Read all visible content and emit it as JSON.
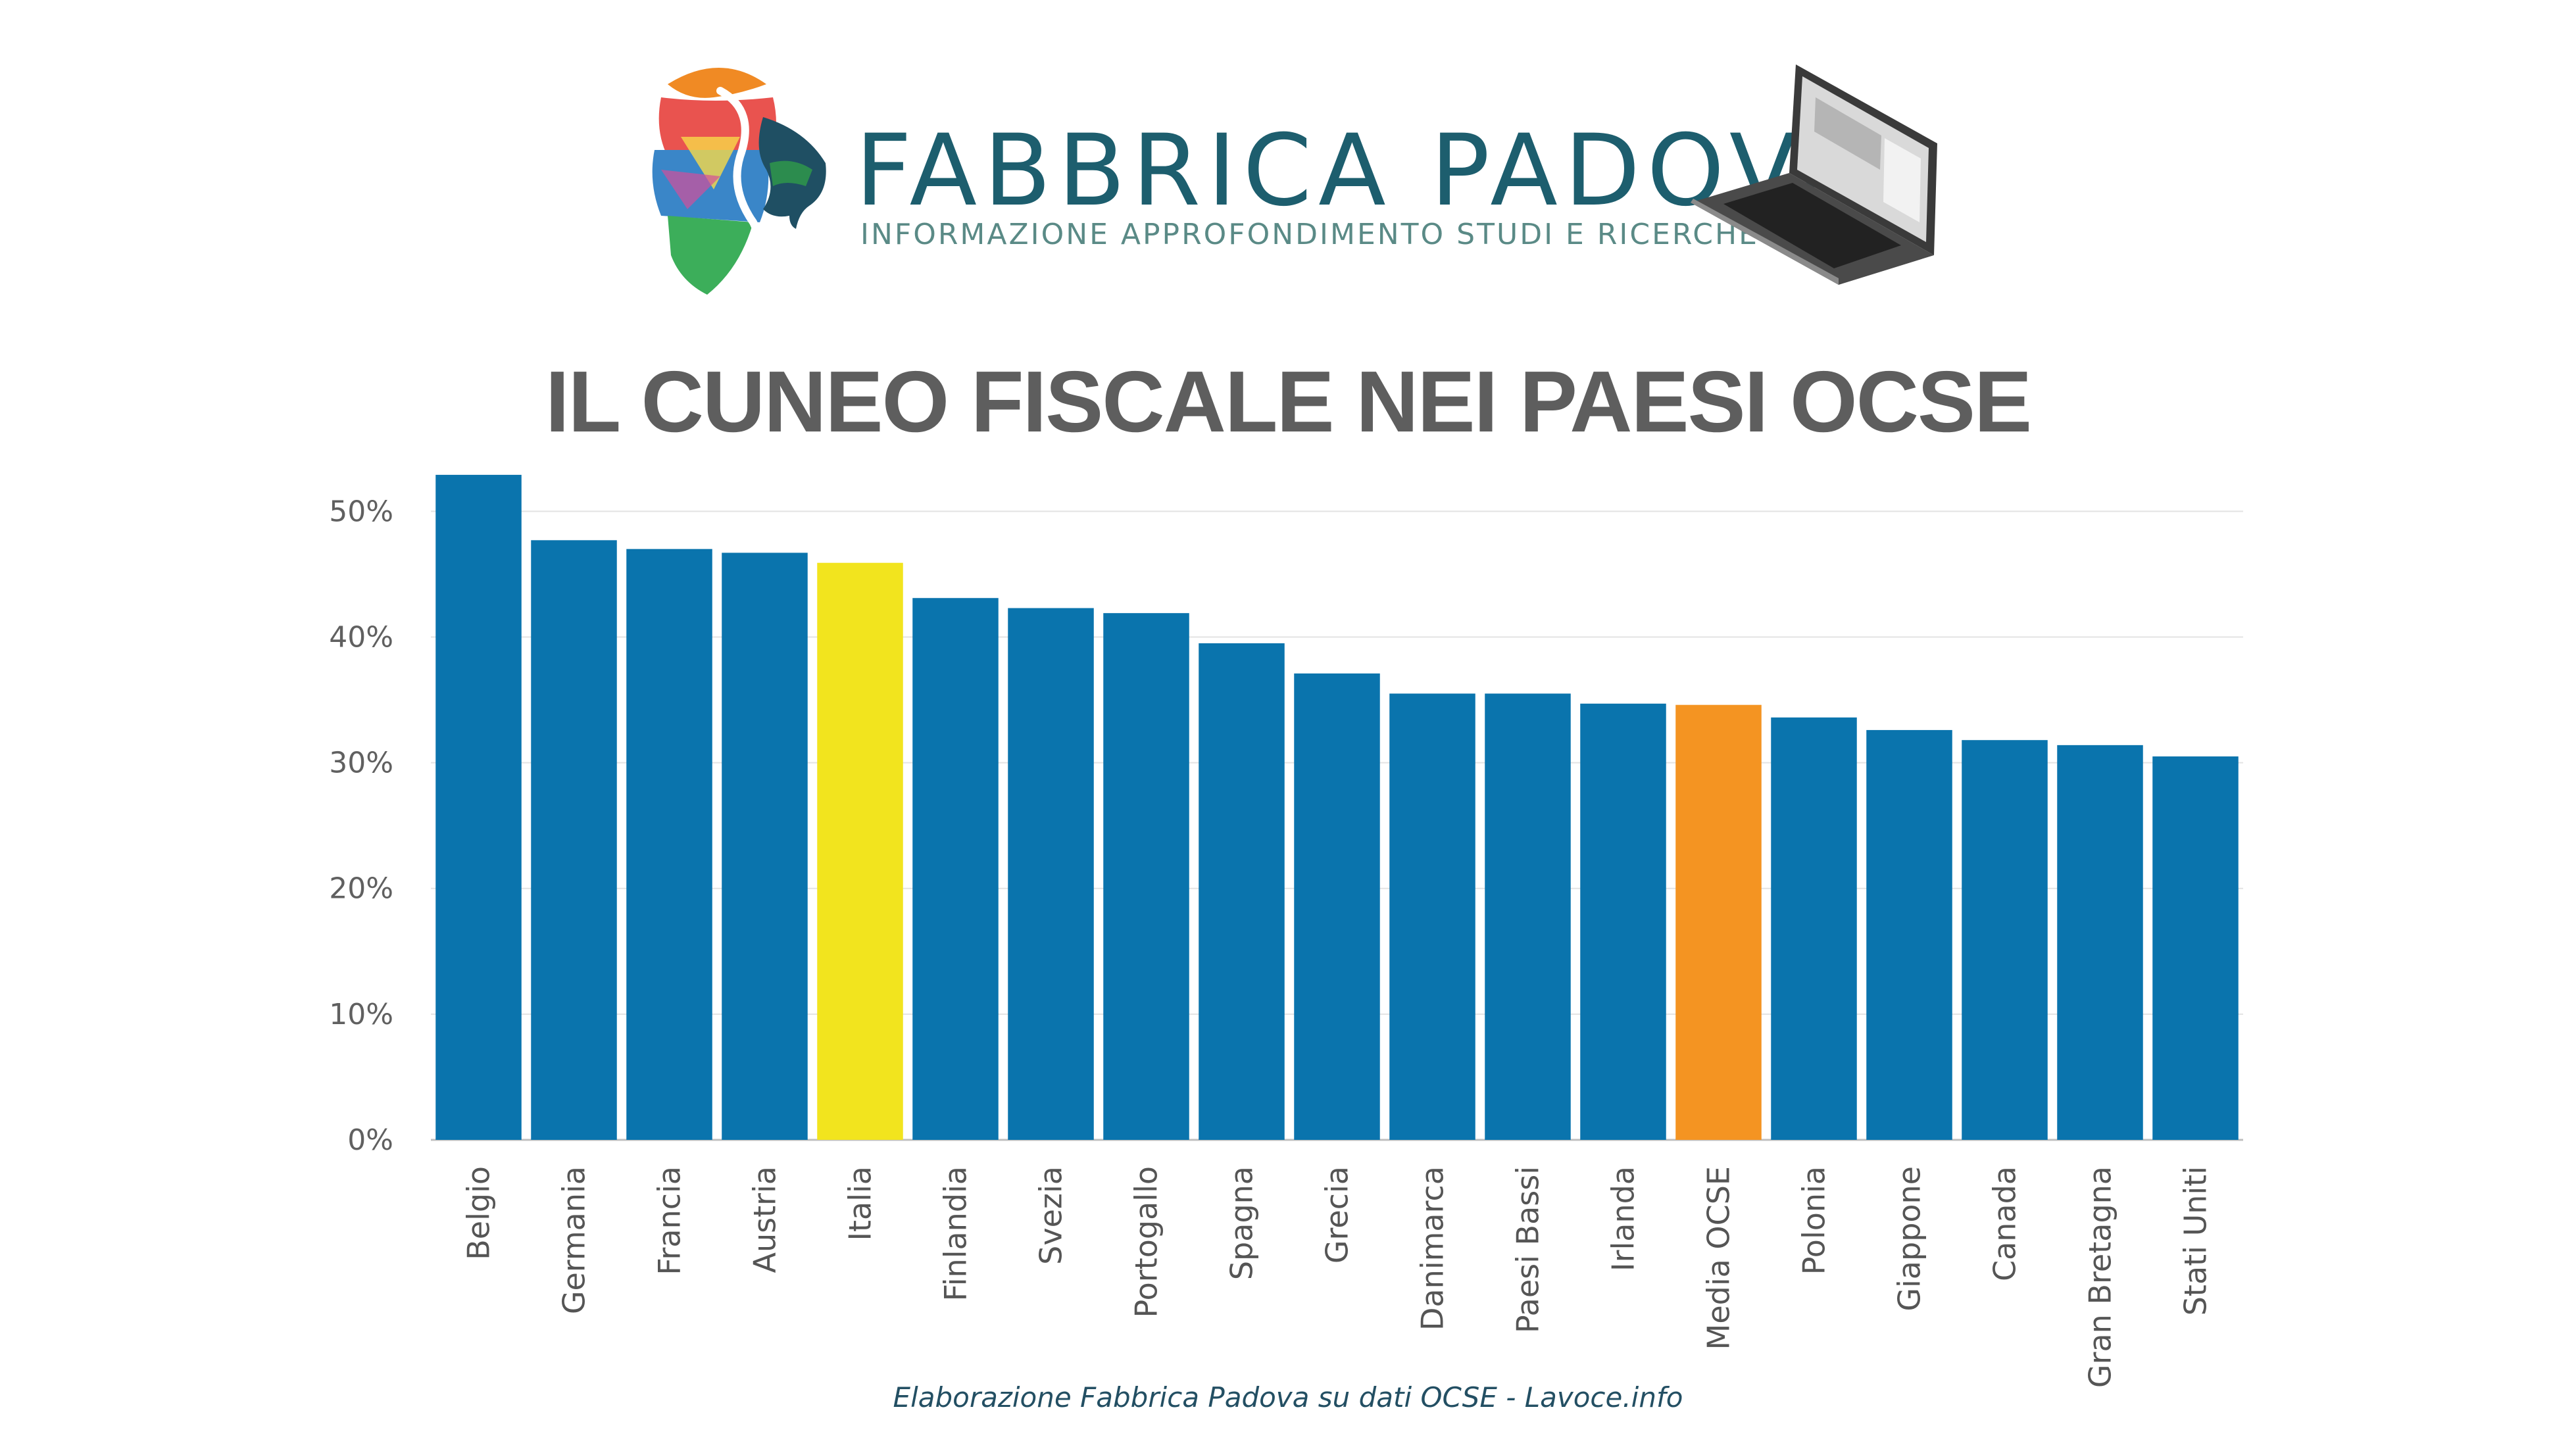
{
  "brand": {
    "name": "FABBRICA PADOVA",
    "tagline": "INFORMAZIONE APPROFONDIMENTO STUDI E RICERCHE",
    "logo_icon": "lion-head-emblem-icon",
    "laptop_icon": "laptop-icon"
  },
  "source_note": "Elaborazione Fabbrica Padova su dati OCSE - Lavoce.info",
  "colors": {
    "bar_default": "#0a74ad",
    "bar_highlight_italia": "#f2e41e",
    "bar_highlight_media": "#f49422",
    "title": "#5e5e5e",
    "brand": "#1d5e6e"
  },
  "chart_data": {
    "type": "bar",
    "title": "IL CUNEO FISCALE NEI PAESI OCSE",
    "xlabel": "",
    "ylabel": "",
    "ylim": [
      0,
      53
    ],
    "yticks": [
      0,
      10,
      20,
      30,
      40,
      50
    ],
    "ytick_labels": [
      "0%",
      "10%",
      "20%",
      "30%",
      "40%",
      "50%"
    ],
    "grid": true,
    "legend": "none",
    "categories": [
      "Belgio",
      "Germania",
      "Francia",
      "Austria",
      "Italia",
      "Finlandia",
      "Svezia",
      "Portogallo",
      "Spagna",
      "Grecia",
      "Danimarca",
      "Paesi Bassi",
      "Irlanda",
      "Media OCSE",
      "Polonia",
      "Giappone",
      "Canada",
      "Gran Bretagna",
      "Stati Uniti"
    ],
    "values": [
      52.9,
      47.7,
      47.0,
      46.7,
      45.9,
      43.1,
      42.3,
      41.9,
      39.5,
      37.1,
      35.5,
      35.5,
      34.7,
      34.6,
      33.6,
      32.6,
      31.8,
      31.4,
      30.5
    ],
    "highlights": {
      "Italia": "#f2e41e",
      "Media OCSE": "#f49422"
    }
  }
}
